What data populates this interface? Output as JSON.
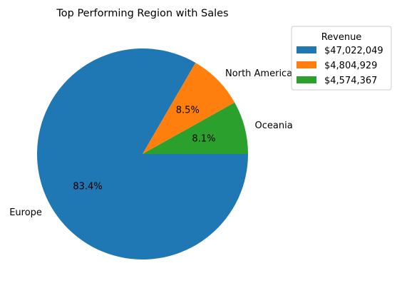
{
  "chart_data": {
    "type": "pie",
    "title": "Top Performing Region with Sales",
    "start_angle_deg": 0,
    "direction": "counterclockwise-from-3-oclock-rendered-clockwise-on-screen",
    "slices": [
      {
        "label": "Europe",
        "value": 47022049,
        "pct_label": "83.4%",
        "legend_label": "$47,022,049",
        "color": "#1f77b4"
      },
      {
        "label": "North America",
        "value": 4804929,
        "pct_label": "8.5%",
        "legend_label": "$4,804,929",
        "color": "#ff7f0e"
      },
      {
        "label": "Oceania",
        "value": 4574367,
        "pct_label": "8.1%",
        "legend_label": "$4,574,367",
        "color": "#2ca02c"
      }
    ],
    "legend": {
      "title": "Revenue",
      "placement": "upper-right-outside"
    }
  }
}
